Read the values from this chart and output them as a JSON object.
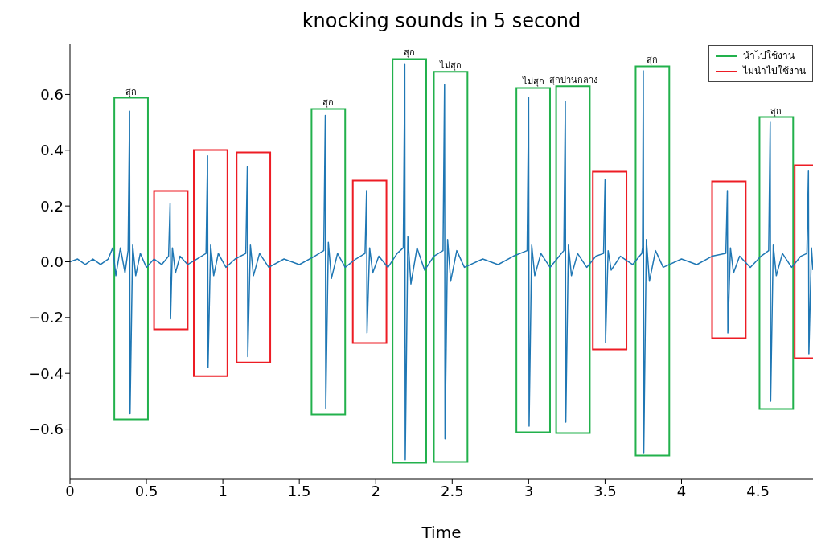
{
  "chart_data": {
    "type": "line",
    "title": "knocking sounds in 5 second",
    "xlabel": "Time",
    "xlim": [
      0,
      4.86
    ],
    "ylim": [
      -0.78,
      0.78
    ],
    "xticks": [
      0,
      0.5,
      1,
      1.5,
      2,
      2.5,
      3,
      3.5,
      4,
      4.5
    ],
    "yticks": [
      {
        "value": -0.6,
        "label": "−0.6"
      },
      {
        "value": -0.4,
        "label": "−0.4"
      },
      {
        "value": -0.2,
        "label": "−0.2"
      },
      {
        "value": 0,
        "label": "0.0"
      },
      {
        "value": 0.2,
        "label": "0.2"
      },
      {
        "value": 0.4,
        "label": "0.4"
      },
      {
        "value": 0.6,
        "label": "0.6"
      }
    ],
    "grid": false,
    "legend": "top right",
    "marker": "none",
    "line_style": "solid",
    "series": [
      {
        "color": "#1f77b4",
        "x": [
          0,
          0.05,
          0.1,
          0.15,
          0.2,
          0.25,
          0.28,
          0.3,
          0.33,
          0.36,
          0.38,
          0.39,
          0.393,
          0.41,
          0.43,
          0.46,
          0.5,
          0.55,
          0.6,
          0.645,
          0.655,
          0.658,
          0.67,
          0.69,
          0.72,
          0.77,
          0.83,
          0.89,
          0.9,
          0.903,
          0.92,
          0.94,
          0.97,
          1.02,
          1.08,
          1.15,
          1.16,
          1.163,
          1.18,
          1.2,
          1.24,
          1.3,
          1.4,
          1.5,
          1.6,
          1.66,
          1.67,
          1.673,
          1.69,
          1.71,
          1.75,
          1.8,
          1.87,
          1.93,
          1.94,
          1.943,
          1.96,
          1.98,
          2.02,
          2.08,
          2.14,
          2.18,
          2.19,
          2.193,
          2.21,
          2.23,
          2.27,
          2.32,
          2.38,
          2.44,
          2.45,
          2.453,
          2.47,
          2.49,
          2.53,
          2.58,
          2.7,
          2.8,
          2.9,
          2.99,
          3.0,
          3.003,
          3.02,
          3.04,
          3.08,
          3.14,
          3.2,
          3.23,
          3.24,
          3.243,
          3.26,
          3.28,
          3.32,
          3.38,
          3.44,
          3.49,
          3.5,
          3.503,
          3.52,
          3.54,
          3.6,
          3.68,
          3.74,
          3.745,
          3.75,
          3.753,
          3.77,
          3.79,
          3.83,
          3.88,
          4.0,
          4.1,
          4.2,
          4.29,
          4.3,
          4.303,
          4.32,
          4.34,
          4.38,
          4.45,
          4.52,
          4.57,
          4.58,
          4.583,
          4.6,
          4.62,
          4.66,
          4.72,
          4.78,
          4.82,
          4.83,
          4.833,
          4.85,
          4.86
        ],
        "values": [
          0,
          0.01,
          -0.01,
          0.01,
          -0.01,
          0.01,
          0.05,
          -0.05,
          0.05,
          -0.04,
          0.04,
          0.54,
          -0.545,
          0.06,
          -0.05,
          0.03,
          -0.02,
          0.01,
          -0.01,
          0.02,
          0.21,
          -0.205,
          0.05,
          -0.04,
          0.02,
          -0.01,
          0.01,
          0.03,
          0.38,
          -0.38,
          0.06,
          -0.05,
          0.03,
          -0.02,
          0.01,
          0.03,
          0.34,
          -0.34,
          0.06,
          -0.05,
          0.03,
          -0.02,
          0.01,
          -0.01,
          0.02,
          0.04,
          0.525,
          -0.525,
          0.07,
          -0.06,
          0.03,
          -0.02,
          0.01,
          0.03,
          0.255,
          -0.255,
          0.05,
          -0.04,
          0.02,
          -0.02,
          0.03,
          0.05,
          0.71,
          -0.71,
          0.09,
          -0.08,
          0.05,
          -0.03,
          0.02,
          0.04,
          0.635,
          -0.635,
          0.08,
          -0.07,
          0.04,
          -0.02,
          0.01,
          -0.01,
          0.02,
          0.04,
          0.59,
          -0.59,
          0.06,
          -0.05,
          0.03,
          -0.02,
          0.02,
          0.04,
          0.575,
          -0.575,
          0.06,
          -0.05,
          0.03,
          -0.02,
          0.02,
          0.03,
          0.295,
          -0.29,
          0.04,
          -0.03,
          0.02,
          -0.01,
          0.03,
          0.05,
          0.685,
          -0.685,
          0.08,
          -0.07,
          0.04,
          -0.02,
          0.01,
          -0.01,
          0.02,
          0.03,
          0.255,
          -0.255,
          0.05,
          -0.04,
          0.02,
          -0.02,
          0.02,
          0.04,
          0.5,
          -0.5,
          0.06,
          -0.05,
          0.03,
          -0.02,
          0.02,
          0.03,
          0.325,
          -0.33,
          0.05,
          -0.03
        ]
      },
      {
        "type": "bar",
        "name": "นำไปใช้งาน",
        "color": "#22b14c",
        "x": [
          0.4,
          1.69,
          2.22,
          2.49,
          3.03,
          3.29,
          3.81,
          4.62
        ],
        "base": [
          -0.565,
          -0.548,
          -0.721,
          -0.718,
          -0.611,
          -0.614,
          -0.695,
          -0.528
        ],
        "values": [
          1.153,
          1.096,
          1.448,
          1.399,
          1.234,
          1.243,
          1.396,
          1.047
        ]
      },
      {
        "type": "bar",
        "name": "ไม่นำไปใช้งาน",
        "color": "#ed1c24",
        "x": [
          0.66,
          0.92,
          1.2,
          1.96,
          3.53,
          4.31,
          4.85
        ],
        "base": [
          -0.242,
          -0.41,
          -0.361,
          -0.291,
          -0.314,
          -0.274,
          -0.346
        ],
        "values": [
          0.496,
          0.811,
          0.753,
          0.582,
          0.637,
          0.562,
          0.692
        ]
      }
    ],
    "annotations": [
      {
        "text": "สุก",
        "x": 0.4,
        "y": 0.588
      },
      {
        "text": "สุก",
        "x": 1.69,
        "y": 0.548
      },
      {
        "text": "สุก",
        "x": 2.22,
        "y": 0.727
      },
      {
        "text": "ไม่สุก",
        "x": 2.49,
        "y": 0.681
      },
      {
        "text": "ไม่สุก",
        "x": 3.03,
        "y": 0.623
      },
      {
        "text": "สุกปานกลาง",
        "x": 3.29,
        "y": 0.629
      },
      {
        "text": "สุก",
        "x": 3.81,
        "y": 0.701
      },
      {
        "text": "สุก",
        "x": 4.62,
        "y": 0.519
      }
    ]
  }
}
